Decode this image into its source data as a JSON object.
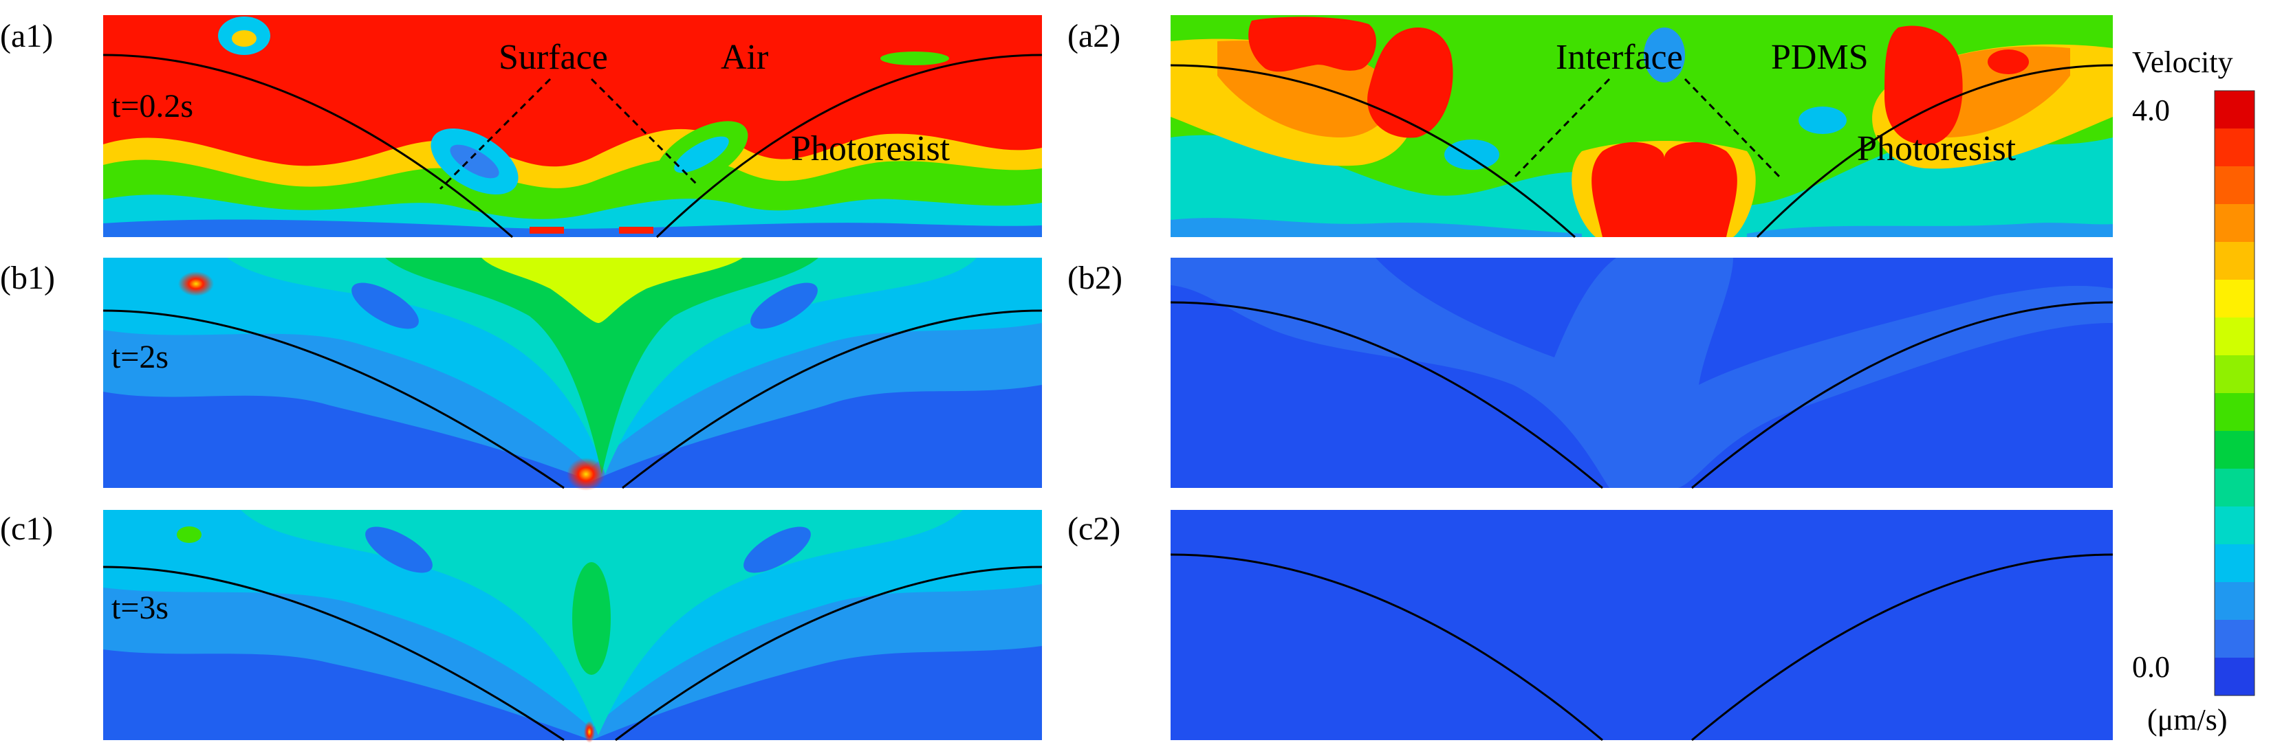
{
  "panels": [
    {
      "id": "a1",
      "label": "(a1)",
      "time": "t=0.2s",
      "field": "high",
      "annotations": [
        "Surface",
        "Air",
        "Photoresist"
      ]
    },
    {
      "id": "b1",
      "label": "(b1)",
      "time": "t=2s",
      "field": "mid1"
    },
    {
      "id": "c1",
      "label": "(c1)",
      "time": "t=3s",
      "field": "mid2"
    },
    {
      "id": "a2",
      "label": "(a2)",
      "field": "high2",
      "annotations": [
        "Interface",
        "PDMS",
        "Photoresist"
      ]
    },
    {
      "id": "b2",
      "label": "(b2)",
      "field": "low1"
    },
    {
      "id": "c2",
      "label": "(c2)",
      "field": "low2"
    }
  ],
  "colorbar": {
    "title": "Velocity",
    "max": "4.0",
    "min": "0.0",
    "unit": "(μm/s)",
    "colors": [
      "#e00000",
      "#ff3000",
      "#ff6000",
      "#ff9000",
      "#ffc000",
      "#fff000",
      "#d0ff00",
      "#90f000",
      "#40e000",
      "#00d040",
      "#00d890",
      "#00d8c8",
      "#00c0f0",
      "#2098f0",
      "#3070f0",
      "#2040e8"
    ]
  }
}
